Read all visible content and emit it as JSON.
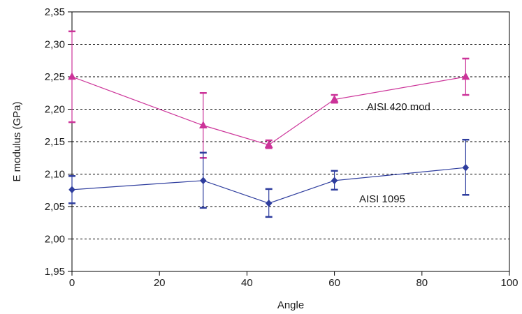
{
  "chart_data": {
    "type": "line",
    "title": "",
    "xlabel": "Angle",
    "ylabel": "E modulus (GPa)",
    "xlim": [
      0,
      100
    ],
    "ylim": [
      1.95,
      2.35
    ],
    "x_ticks": [
      "0",
      "20",
      "40",
      "60",
      "80",
      "100"
    ],
    "y_ticks": [
      "1,95",
      "2,00",
      "2,05",
      "2,10",
      "2,15",
      "2,20",
      "2,25",
      "2,30",
      "2,35"
    ],
    "grid": "horizontal dashed",
    "series": [
      {
        "name": "AISI 420 mod",
        "color": "#cc3399",
        "marker": "triangle",
        "points": [
          {
            "x": 0,
            "y": 2.25,
            "err_low": 2.18,
            "err_high": 2.32
          },
          {
            "x": 30,
            "y": 2.175,
            "err_low": 2.125,
            "err_high": 2.225
          },
          {
            "x": 45,
            "y": 2.145,
            "err_low": 2.14,
            "err_high": 2.152
          },
          {
            "x": 60,
            "y": 2.215,
            "err_low": 2.21,
            "err_high": 2.222
          },
          {
            "x": 90,
            "y": 2.25,
            "err_low": 2.222,
            "err_high": 2.278
          }
        ]
      },
      {
        "name": "AISI 1095",
        "color": "#2e3d9e",
        "marker": "diamond",
        "points": [
          {
            "x": 0,
            "y": 2.076,
            "err_low": 2.055,
            "err_high": 2.097
          },
          {
            "x": 30,
            "y": 2.09,
            "err_low": 2.048,
            "err_high": 2.133
          },
          {
            "x": 45,
            "y": 2.055,
            "err_low": 2.034,
            "err_high": 2.077
          },
          {
            "x": 60,
            "y": 2.09,
            "err_low": 2.076,
            "err_high": 2.105
          },
          {
            "x": 90,
            "y": 2.11,
            "err_low": 2.068,
            "err_high": 2.153
          }
        ]
      }
    ],
    "annotations": [
      {
        "text": "AISI 420 mod",
        "series": 0
      },
      {
        "text": "AISI 1095",
        "series": 1
      }
    ]
  }
}
